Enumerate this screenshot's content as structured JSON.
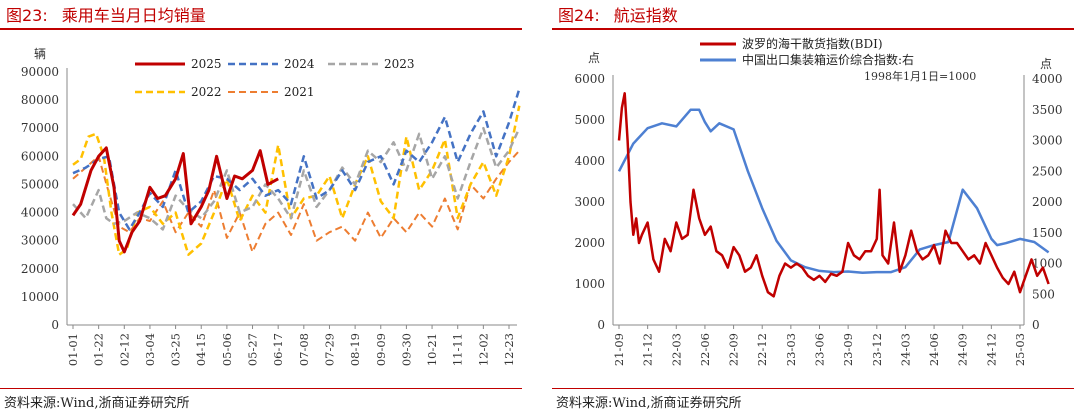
{
  "left_panel": {
    "fig_num": "图23:",
    "title": "乘用车当月日均销量",
    "source": "资料来源:Wind,浙商证券研究所"
  },
  "right_panel": {
    "fig_num": "图24:",
    "title": "航运指数",
    "source": "资料来源:Wind,浙商证券研究所"
  },
  "chart_data": [
    {
      "type": "line",
      "title": "乘用车当月日均销量",
      "ylabel": "辆",
      "ylim": [
        0,
        90000
      ],
      "yticks": [
        0,
        10000,
        20000,
        30000,
        40000,
        50000,
        60000,
        70000,
        80000,
        90000
      ],
      "categories": [
        "01-01",
        "01-22",
        "02-12",
        "03-04",
        "03-25",
        "04-15",
        "05-06",
        "05-27",
        "06-17",
        "07-08",
        "07-29",
        "08-19",
        "09-09",
        "09-30",
        "10-21",
        "11-11",
        "12-02",
        "12-23"
      ],
      "legend_position": "top",
      "series": [
        {
          "name": "2025",
          "color": "#c00000",
          "dash": false,
          "width": 3,
          "x": [
            0,
            0.3,
            0.7,
            1,
            1.3,
            1.6,
            1.8,
            2,
            2.3,
            2.6,
            3,
            3.3,
            3.6,
            4,
            4.3,
            4.6,
            5,
            5.3,
            5.6,
            6,
            6.3,
            6.6,
            7,
            7.3,
            7.6,
            8
          ],
          "y": [
            39000,
            43000,
            55000,
            60000,
            63000,
            49000,
            30000,
            26000,
            33000,
            37000,
            49000,
            45000,
            46000,
            52000,
            61000,
            36000,
            42000,
            48000,
            60000,
            45000,
            53000,
            52000,
            55000,
            62000,
            50000,
            52000
          ]
        },
        {
          "name": "2024",
          "color": "#4472c4",
          "dash": true,
          "width": 2.5,
          "x": [
            0,
            0.5,
            1,
            1.4,
            1.8,
            2.2,
            2.6,
            3,
            3.5,
            4,
            4.5,
            5,
            5.5,
            6,
            6.5,
            7,
            7.5,
            8,
            8.5,
            9,
            9.5,
            10,
            10.5,
            11,
            11.5,
            12,
            12.5,
            13,
            13.5,
            14,
            14.5,
            15,
            15.5,
            16,
            16.5,
            17,
            17.4
          ],
          "y": [
            54000,
            56000,
            59000,
            60000,
            40000,
            34000,
            40000,
            47000,
            42000,
            55000,
            40000,
            44000,
            53000,
            52000,
            48000,
            52000,
            46000,
            48000,
            43000,
            60000,
            45000,
            48000,
            55000,
            48000,
            58000,
            60000,
            50000,
            62000,
            58000,
            65000,
            74000,
            58000,
            68000,
            76000,
            60000,
            72000,
            84000
          ]
        },
        {
          "name": "2023",
          "color": "#a6a6a6",
          "dash": true,
          "width": 2.5,
          "x": [
            0,
            0.5,
            1,
            1.3,
            1.6,
            2,
            2.5,
            3,
            3.5,
            4,
            4.5,
            5,
            5.5,
            6,
            6.5,
            7,
            7.5,
            8,
            8.5,
            9,
            9.5,
            10,
            10.5,
            11,
            11.5,
            12,
            12.5,
            13,
            13.5,
            14,
            14.5,
            15,
            15.5,
            16,
            16.5,
            17,
            17.4
          ],
          "y": [
            43000,
            38000,
            48000,
            38000,
            36000,
            37000,
            40000,
            38000,
            34000,
            46000,
            41000,
            38000,
            44000,
            55000,
            40000,
            42000,
            50000,
            45000,
            38000,
            55000,
            42000,
            48000,
            56000,
            50000,
            62000,
            58000,
            65000,
            55000,
            68000,
            52000,
            60000,
            45000,
            58000,
            70000,
            56000,
            62000,
            70000
          ]
        },
        {
          "name": "2022",
          "color": "#ffc000",
          "dash": true,
          "width": 2.5,
          "x": [
            0,
            0.3,
            0.6,
            0.9,
            1.2,
            1.5,
            1.8,
            2.1,
            2.5,
            3,
            3.5,
            4,
            4.5,
            5,
            5.5,
            6,
            6.5,
            7,
            7.5,
            8,
            8.5,
            9,
            9.5,
            10,
            10.5,
            11,
            11.5,
            12,
            12.5,
            13,
            13.5,
            14,
            14.5,
            15,
            15.5,
            16,
            16.5,
            17,
            17.4
          ],
          "y": [
            57000,
            59000,
            67000,
            68000,
            60000,
            40000,
            25000,
            27000,
            40000,
            42000,
            36000,
            40000,
            25000,
            29000,
            40000,
            52000,
            37000,
            46000,
            40000,
            64000,
            38000,
            45000,
            46000,
            53000,
            38000,
            50000,
            60000,
            44000,
            38000,
            67000,
            48000,
            55000,
            66000,
            38000,
            50000,
            58000,
            46000,
            60000,
            78000
          ]
        },
        {
          "name": "2021",
          "color": "#ed7d31",
          "dash": true,
          "width": 2,
          "x": [
            0,
            0.5,
            1,
            1.4,
            1.8,
            2.2,
            2.6,
            3,
            3.5,
            4,
            4.5,
            5,
            5.5,
            6,
            6.5,
            7,
            7.5,
            8,
            8.5,
            9,
            9.5,
            10,
            10.5,
            11,
            11.5,
            12,
            12.5,
            13,
            13.5,
            14,
            14.5,
            15,
            15.5,
            16,
            16.5,
            17,
            17.4
          ],
          "y": [
            52000,
            56000,
            60000,
            47000,
            35000,
            33000,
            38000,
            37000,
            44000,
            33000,
            40000,
            35000,
            48000,
            31000,
            40000,
            26000,
            36000,
            40000,
            32000,
            43000,
            30000,
            33000,
            35000,
            30000,
            40000,
            31000,
            38000,
            33000,
            40000,
            35000,
            45000,
            34000,
            50000,
            45000,
            52000,
            58000,
            62000
          ]
        }
      ]
    },
    {
      "type": "line",
      "title": "航运指数",
      "ylabel_left": "点",
      "ylabel_right": "点",
      "ylim_left": [
        0,
        6000
      ],
      "ylim_right": [
        0,
        4000
      ],
      "yticks_left": [
        0,
        1000,
        2000,
        3000,
        4000,
        5000,
        6000
      ],
      "yticks_right": [
        0,
        500,
        1000,
        1500,
        2000,
        2500,
        3000,
        3500,
        4000
      ],
      "categories": [
        "21-09",
        "21-12",
        "22-03",
        "22-06",
        "22-09",
        "22-12",
        "23-03",
        "23-06",
        "23-09",
        "23-12",
        "24-03",
        "24-06",
        "24-09",
        "24-12",
        "25-03"
      ],
      "annotation": "1998年1月1日=1000",
      "legend_position": "top-center",
      "series": [
        {
          "name": "波罗的海干散货指数(BDI)",
          "axis": "left",
          "color": "#c00000",
          "width": 2.5,
          "x": [
            0,
            0.1,
            0.2,
            0.3,
            0.4,
            0.5,
            0.6,
            0.7,
            0.8,
            1,
            1.2,
            1.4,
            1.6,
            1.8,
            2,
            2.2,
            2.4,
            2.6,
            2.8,
            3,
            3.2,
            3.4,
            3.6,
            3.8,
            4,
            4.2,
            4.4,
            4.6,
            4.8,
            5,
            5.2,
            5.4,
            5.6,
            5.8,
            6,
            6.2,
            6.4,
            6.6,
            6.8,
            7,
            7.2,
            7.4,
            7.6,
            7.8,
            8,
            8.2,
            8.4,
            8.6,
            8.8,
            9,
            9.1,
            9.2,
            9.4,
            9.6,
            9.8,
            10,
            10.2,
            10.4,
            10.6,
            10.8,
            11,
            11.2,
            11.4,
            11.6,
            11.8,
            12,
            12.2,
            12.4,
            12.6,
            12.8,
            13,
            13.2,
            13.4,
            13.6,
            13.8,
            14,
            14.2,
            14.4,
            14.6,
            14.8,
            15
          ],
          "y": [
            4500,
            5300,
            5650,
            4500,
            3000,
            2200,
            2600,
            2000,
            2200,
            2500,
            1600,
            1300,
            2100,
            1800,
            2500,
            2100,
            2200,
            3300,
            2600,
            2200,
            2400,
            1800,
            1700,
            1400,
            1900,
            1700,
            1300,
            1400,
            1700,
            1200,
            800,
            700,
            1200,
            1500,
            1400,
            1500,
            1400,
            1200,
            1100,
            1200,
            1050,
            1250,
            1200,
            1300,
            2000,
            1700,
            1600,
            1800,
            1800,
            2100,
            3300,
            1700,
            1500,
            2500,
            1300,
            1700,
            2300,
            1800,
            1600,
            1700,
            1950,
            1500,
            2300,
            2000,
            2000,
            1800,
            1600,
            1700,
            1500,
            2000,
            1700,
            1400,
            1150,
            1000,
            1300,
            800,
            1200,
            1600,
            1200,
            1400,
            1000
          ]
        },
        {
          "name": "中国出口集装箱运价综合指数:右",
          "axis": "right",
          "color": "#4e80d2",
          "width": 2.5,
          "x": [
            0,
            0.5,
            1,
            1.5,
            2,
            2.5,
            2.8,
            3,
            3.2,
            3.5,
            4,
            4.5,
            5,
            5.5,
            6,
            6.5,
            7,
            7.5,
            8,
            8.5,
            9,
            9.5,
            10,
            10.5,
            11,
            11.5,
            12,
            12.5,
            13,
            13.2,
            13.5,
            14,
            14.5,
            15
          ],
          "y": [
            2500,
            2950,
            3200,
            3280,
            3230,
            3500,
            3500,
            3300,
            3150,
            3280,
            3180,
            2500,
            1900,
            1370,
            1050,
            940,
            880,
            860,
            870,
            850,
            860,
            860,
            940,
            1230,
            1300,
            1350,
            2200,
            1900,
            1400,
            1300,
            1330,
            1400,
            1350,
            1180
          ]
        }
      ]
    }
  ]
}
